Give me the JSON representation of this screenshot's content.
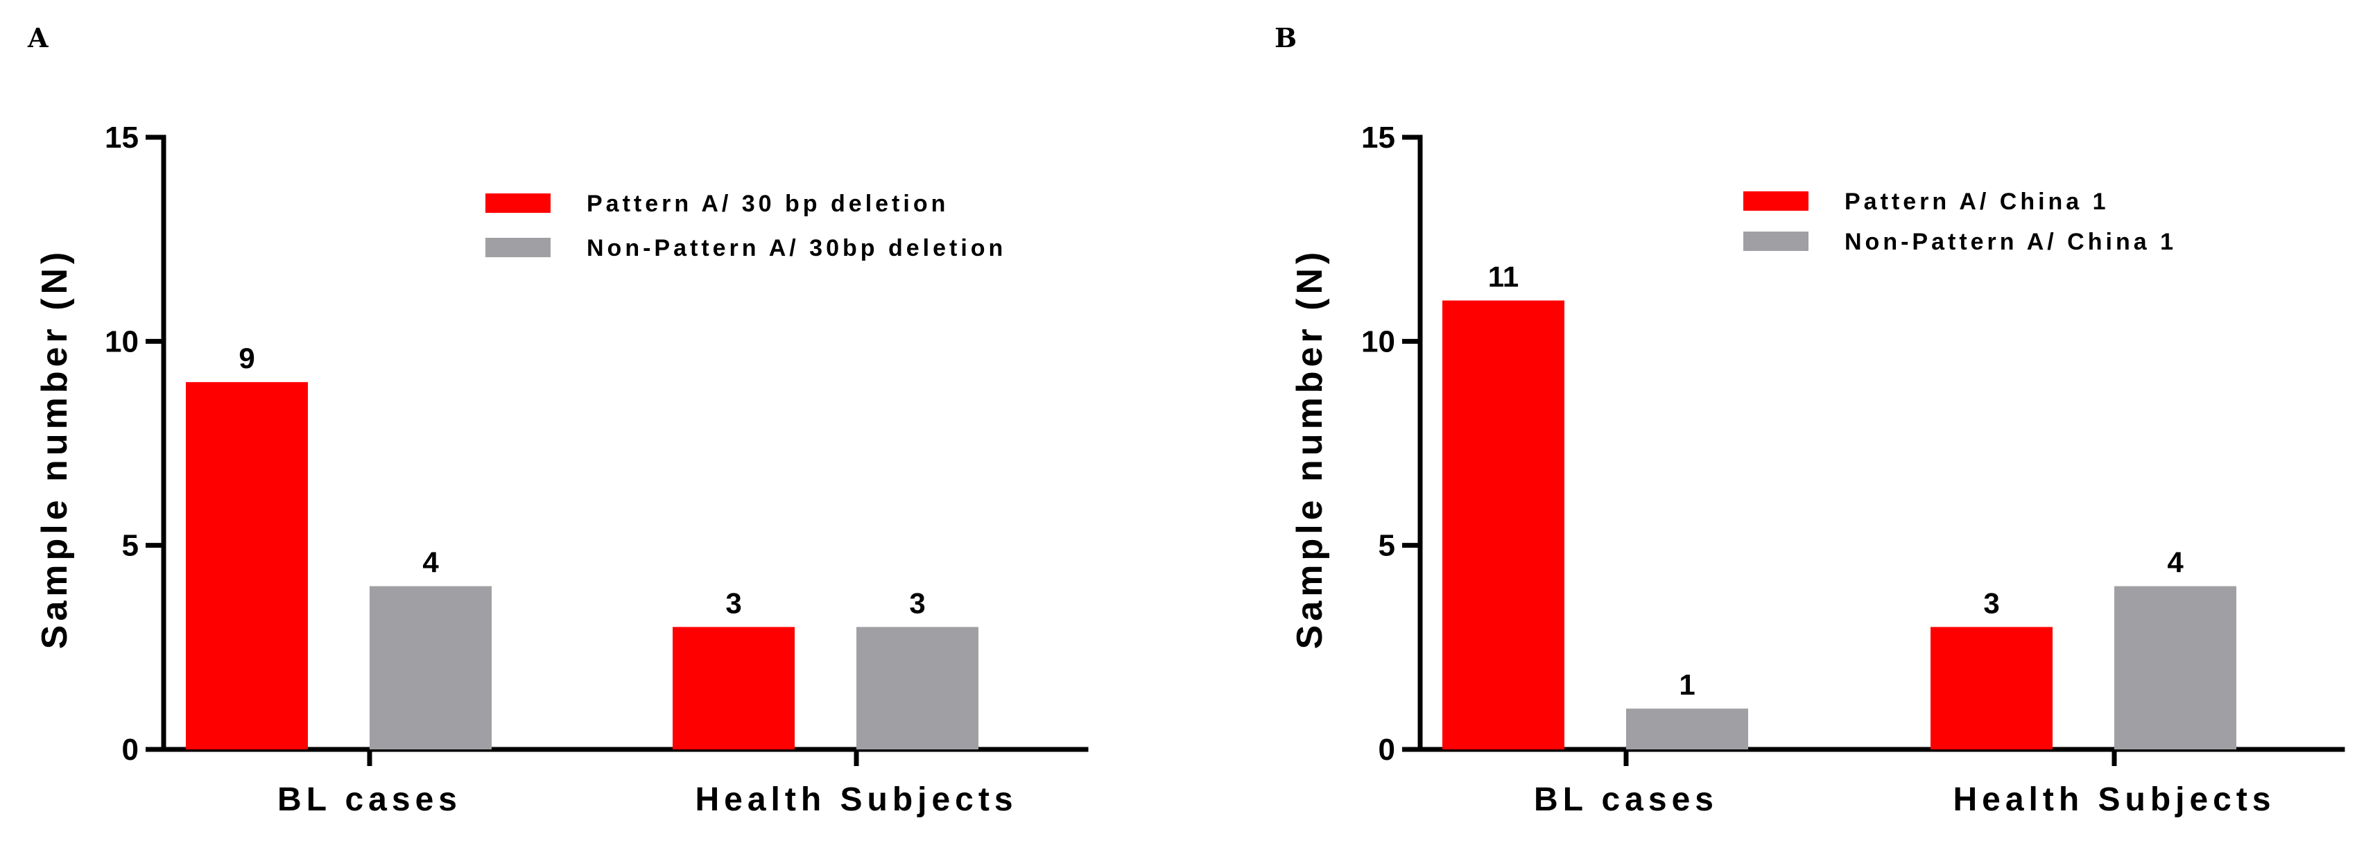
{
  "colors": {
    "pattern": "#ff0000",
    "non_pattern": "#a0a0a4",
    "axis": "#000000"
  },
  "chart_data": [
    {
      "panel": "A",
      "type": "bar",
      "categories": [
        "BL cases",
        "Health Subjects"
      ],
      "series": [
        {
          "name": "Pattern A/ 30 bp deletion",
          "values": [
            9,
            3
          ]
        },
        {
          "name": "Non-Pattern A/ 30bp deletion",
          "values": [
            4,
            3
          ]
        }
      ],
      "ylabel": "Sample number (N)",
      "ylim": [
        0,
        15
      ],
      "yticks": [
        0,
        5,
        10,
        15
      ],
      "grid": false,
      "legend_position": "top-right"
    },
    {
      "panel": "B",
      "type": "bar",
      "categories": [
        "BL cases",
        "Health Subjects"
      ],
      "series": [
        {
          "name": "Pattern A/ China 1",
          "values": [
            11,
            3
          ]
        },
        {
          "name": "Non-Pattern A/ China 1",
          "values": [
            1,
            4
          ]
        }
      ],
      "ylabel": "Sample number (N)",
      "ylim": [
        0,
        15
      ],
      "yticks": [
        0,
        5,
        10,
        15
      ],
      "grid": false,
      "legend_position": "top-right"
    }
  ]
}
